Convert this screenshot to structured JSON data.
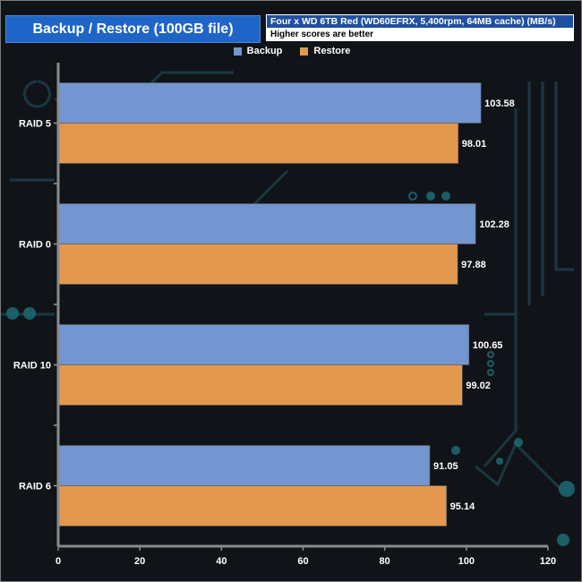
{
  "header": {
    "title": "Backup / Restore (100GB file)",
    "subtitle": "Four x WD 6TB Red (WD60EFRX, 5,400rpm, 64MB cache) (MB/s)",
    "note": "Higher scores are better"
  },
  "chart_data": {
    "type": "bar",
    "orientation": "horizontal",
    "categories": [
      "RAID 5",
      "RAID 0",
      "RAID 10",
      "RAID 6"
    ],
    "series": [
      {
        "name": "Backup",
        "color": "#7396d0",
        "values": [
          103.58,
          102.28,
          100.65,
          91.05
        ]
      },
      {
        "name": "Restore",
        "color": "#e2994f",
        "values": [
          98.01,
          97.88,
          99.02,
          95.14
        ]
      }
    ],
    "x_ticks": [
      0,
      20,
      40,
      60,
      80,
      100,
      120
    ],
    "xlim": [
      0,
      120
    ],
    "title": "Backup / Restore (100GB file)",
    "legend_position": "top-center",
    "grid": false
  }
}
